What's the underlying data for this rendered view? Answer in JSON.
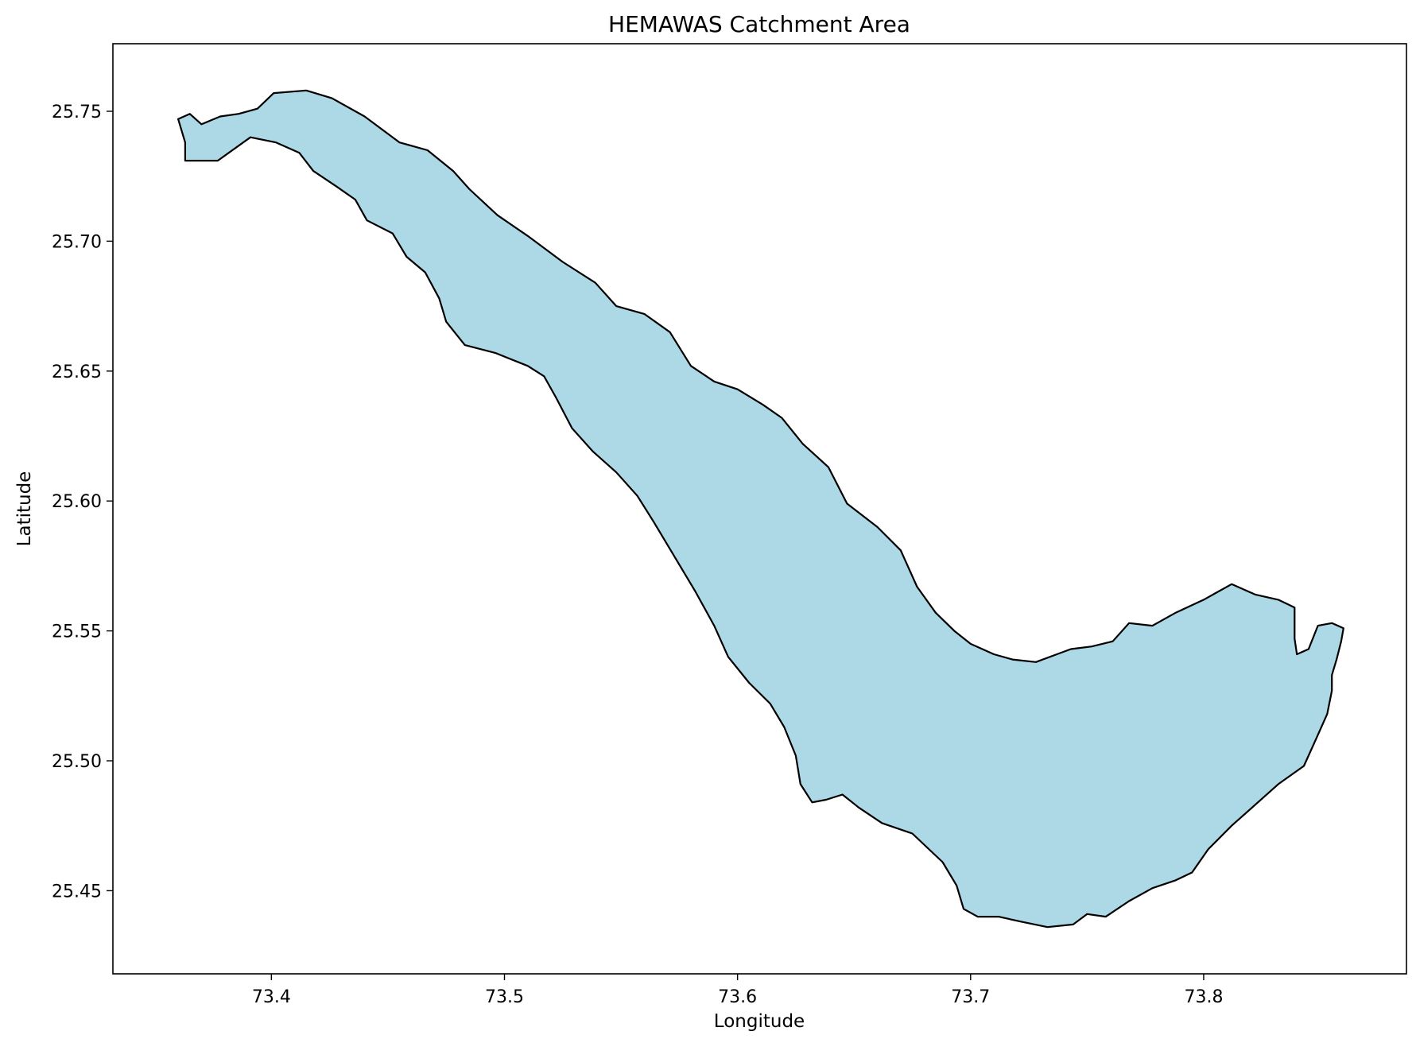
{
  "chart_data": {
    "type": "map",
    "title": "HEMAWAS Catchment Area",
    "xlabel": "Longitude",
    "ylabel": "Latitude",
    "xlim": [
      73.332,
      73.887
    ],
    "ylim": [
      25.418,
      25.776
    ],
    "xticks": [
      {
        "value": 73.4,
        "label": "73.4"
      },
      {
        "value": 73.5,
        "label": "73.5"
      },
      {
        "value": 73.6,
        "label": "73.6"
      },
      {
        "value": 73.7,
        "label": "73.7"
      },
      {
        "value": 73.8,
        "label": "73.8"
      }
    ],
    "yticks": [
      {
        "value": 25.45,
        "label": "25.45"
      },
      {
        "value": 25.5,
        "label": "25.50"
      },
      {
        "value": 25.55,
        "label": "25.55"
      },
      {
        "value": 25.6,
        "label": "25.60"
      },
      {
        "value": 25.65,
        "label": "25.65"
      },
      {
        "value": 25.7,
        "label": "25.70"
      },
      {
        "value": 25.75,
        "label": "25.75"
      }
    ],
    "grid": false,
    "fill_color": "#add8e6",
    "edge_color": "#000000",
    "polygon": [
      [
        73.363,
        25.731
      ],
      [
        73.377,
        25.731
      ],
      [
        73.391,
        25.74
      ],
      [
        73.402,
        25.738
      ],
      [
        73.412,
        25.734
      ],
      [
        73.418,
        25.727
      ],
      [
        73.428,
        25.721
      ],
      [
        73.436,
        25.716
      ],
      [
        73.441,
        25.708
      ],
      [
        73.452,
        25.703
      ],
      [
        73.458,
        25.694
      ],
      [
        73.466,
        25.688
      ],
      [
        73.472,
        25.678
      ],
      [
        73.475,
        25.669
      ],
      [
        73.483,
        25.66
      ],
      [
        73.496,
        25.657
      ],
      [
        73.51,
        25.652
      ],
      [
        73.517,
        25.648
      ],
      [
        73.522,
        25.64
      ],
      [
        73.529,
        25.628
      ],
      [
        73.538,
        25.619
      ],
      [
        73.548,
        25.611
      ],
      [
        73.557,
        25.602
      ],
      [
        73.564,
        25.592
      ],
      [
        73.572,
        25.58
      ],
      [
        73.582,
        25.565
      ],
      [
        73.59,
        25.552
      ],
      [
        73.596,
        25.54
      ],
      [
        73.605,
        25.53
      ],
      [
        73.614,
        25.522
      ],
      [
        73.62,
        25.513
      ],
      [
        73.625,
        25.502
      ],
      [
        73.627,
        25.491
      ],
      [
        73.632,
        25.484
      ],
      [
        73.638,
        25.485
      ],
      [
        73.645,
        25.487
      ],
      [
        73.652,
        25.482
      ],
      [
        73.662,
        25.476
      ],
      [
        73.675,
        25.472
      ],
      [
        73.688,
        25.461
      ],
      [
        73.694,
        25.452
      ],
      [
        73.697,
        25.443
      ],
      [
        73.703,
        25.44
      ],
      [
        73.712,
        25.44
      ],
      [
        73.722,
        25.438
      ],
      [
        73.733,
        25.436
      ],
      [
        73.744,
        25.437
      ],
      [
        73.75,
        25.441
      ],
      [
        73.758,
        25.44
      ],
      [
        73.768,
        25.446
      ],
      [
        73.778,
        25.451
      ],
      [
        73.788,
        25.454
      ],
      [
        73.795,
        25.457
      ],
      [
        73.802,
        25.466
      ],
      [
        73.812,
        25.475
      ],
      [
        73.822,
        25.483
      ],
      [
        73.832,
        25.491
      ],
      [
        73.843,
        25.498
      ],
      [
        73.848,
        25.508
      ],
      [
        73.853,
        25.518
      ],
      [
        73.855,
        25.527
      ],
      [
        73.855,
        25.533
      ],
      [
        73.857,
        25.539
      ],
      [
        73.859,
        25.546
      ],
      [
        73.86,
        25.551
      ],
      [
        73.855,
        25.553
      ],
      [
        73.849,
        25.552
      ],
      [
        73.845,
        25.543
      ],
      [
        73.84,
        25.541
      ],
      [
        73.839,
        25.547
      ],
      [
        73.839,
        25.559
      ],
      [
        73.832,
        25.562
      ],
      [
        73.822,
        25.564
      ],
      [
        73.812,
        25.568
      ],
      [
        73.8,
        25.562
      ],
      [
        73.788,
        25.557
      ],
      [
        73.778,
        25.552
      ],
      [
        73.768,
        25.553
      ],
      [
        73.761,
        25.546
      ],
      [
        73.752,
        25.544
      ],
      [
        73.743,
        25.543
      ],
      [
        73.737,
        25.541
      ],
      [
        73.728,
        25.538
      ],
      [
        73.718,
        25.539
      ],
      [
        73.71,
        25.541
      ],
      [
        73.7,
        25.545
      ],
      [
        73.693,
        25.55
      ],
      [
        73.685,
        25.557
      ],
      [
        73.677,
        25.567
      ],
      [
        73.67,
        25.581
      ],
      [
        73.66,
        25.59
      ],
      [
        73.647,
        25.599
      ],
      [
        73.639,
        25.613
      ],
      [
        73.628,
        25.622
      ],
      [
        73.619,
        25.632
      ],
      [
        73.611,
        25.637
      ],
      [
        73.6,
        25.643
      ],
      [
        73.59,
        25.646
      ],
      [
        73.58,
        25.652
      ],
      [
        73.571,
        25.665
      ],
      [
        73.56,
        25.672
      ],
      [
        73.548,
        25.675
      ],
      [
        73.539,
        25.684
      ],
      [
        73.525,
        25.692
      ],
      [
        73.51,
        25.702
      ],
      [
        73.497,
        25.71
      ],
      [
        73.485,
        25.72
      ],
      [
        73.478,
        25.727
      ],
      [
        73.467,
        25.735
      ],
      [
        73.455,
        25.738
      ],
      [
        73.44,
        25.748
      ],
      [
        73.426,
        25.755
      ],
      [
        73.415,
        25.758
      ],
      [
        73.401,
        25.757
      ],
      [
        73.394,
        25.751
      ],
      [
        73.386,
        25.749
      ],
      [
        73.378,
        25.748
      ],
      [
        73.37,
        25.745
      ],
      [
        73.365,
        25.749
      ],
      [
        73.36,
        25.747
      ],
      [
        73.363,
        25.738
      ]
    ]
  }
}
